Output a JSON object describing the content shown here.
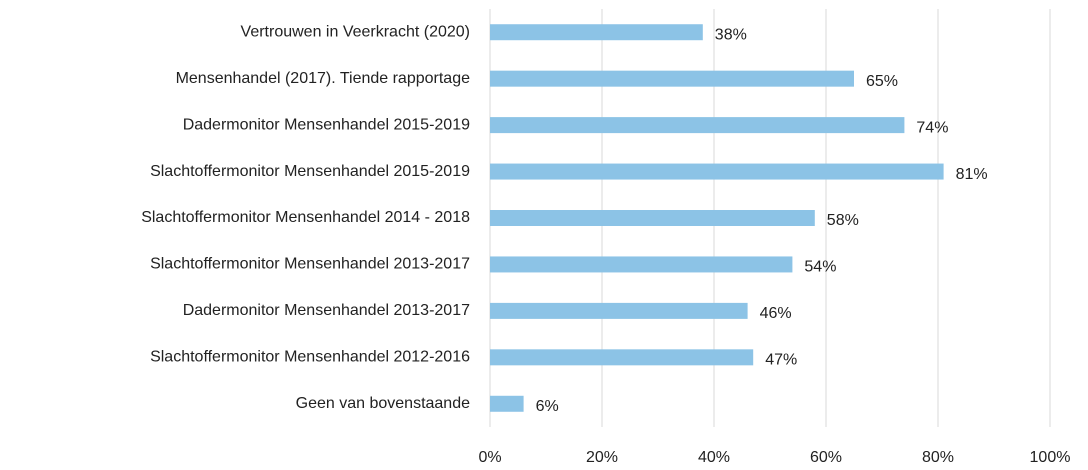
{
  "chart_data": {
    "type": "bar",
    "orientation": "horizontal",
    "categories": [
      "Vertrouwen in Veerkracht (2020)",
      "Mensenhandel (2017). Tiende rapportage",
      "Dadermonitor Mensenhandel 2015-2019",
      "Slachtoffermonitor Mensenhandel 2015-2019",
      "Slachtoffermonitor Mensenhandel 2014 - 2018",
      "Slachtoffermonitor Mensenhandel 2013-2017",
      "Dadermonitor Mensenhandel 2013-2017",
      "Slachtoffermonitor Mensenhandel 2012-2016",
      "Geen van bovenstaande"
    ],
    "values": [
      38,
      65,
      74,
      81,
      58,
      54,
      46,
      47,
      6
    ],
    "value_labels": [
      "38%",
      "65%",
      "74%",
      "81%",
      "58%",
      "54%",
      "46%",
      "47%",
      "6%"
    ],
    "color": "#8cc3e6",
    "xlim": [
      0,
      100
    ],
    "xticks": [
      {
        "value": 0,
        "label": "0%"
      },
      {
        "value": 20,
        "label": "20%"
      },
      {
        "value": 40,
        "label": "40%"
      },
      {
        "value": 60,
        "label": "60%"
      },
      {
        "value": 80,
        "label": "80%"
      },
      {
        "value": 100,
        "label": "100%"
      }
    ],
    "grid": true
  }
}
